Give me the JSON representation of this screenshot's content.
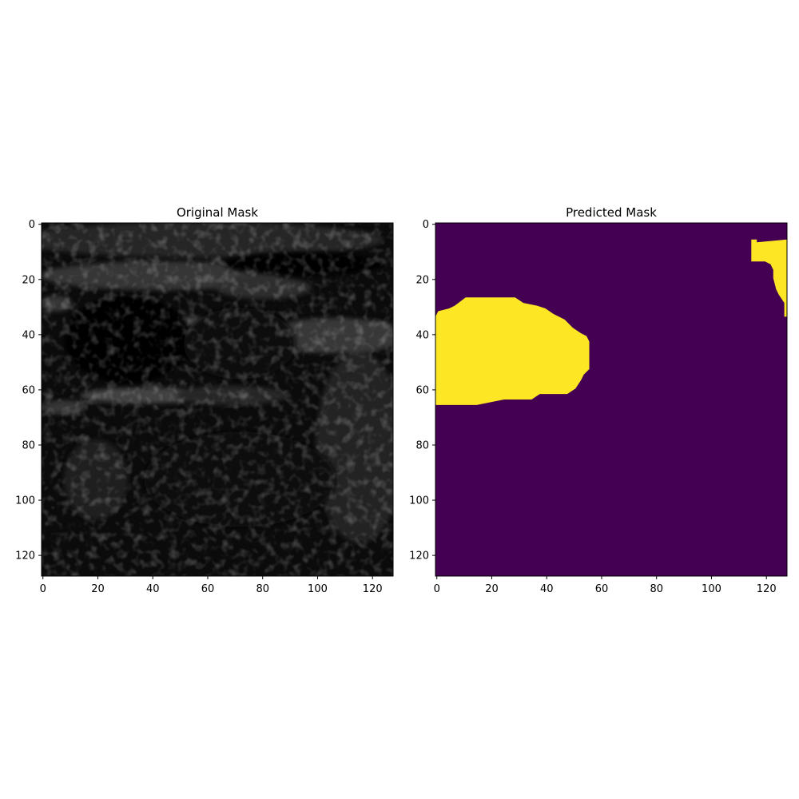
{
  "chart_data": [
    {
      "type": "heatmap",
      "title": "Original Mask",
      "xlabel": "",
      "ylabel": "",
      "colormap": "gray",
      "content": "grayscale ultrasound image",
      "xlim": [
        0,
        128
      ],
      "ylim": [
        128,
        0
      ],
      "xticks": [
        "0",
        "20",
        "40",
        "60",
        "80",
        "100",
        "120"
      ],
      "yticks": [
        "0",
        "20",
        "40",
        "60",
        "80",
        "100",
        "120"
      ]
    },
    {
      "type": "heatmap",
      "title": "Predicted Mask",
      "xlabel": "",
      "ylabel": "",
      "colormap": "viridis",
      "colors": {
        "background": "#440154",
        "mask": "#fde725"
      },
      "xlim": [
        0,
        128
      ],
      "ylim": [
        128,
        0
      ],
      "xticks": [
        "0",
        "20",
        "40",
        "60",
        "80",
        "100",
        "120"
      ],
      "yticks": [
        "0",
        "20",
        "40",
        "60",
        "80",
        "100",
        "120"
      ],
      "regions": [
        {
          "name": "left blob",
          "outline": [
            [
              0,
              34
            ],
            [
              1,
              32
            ],
            [
              5,
              31
            ],
            [
              7,
              30
            ],
            [
              11,
              27
            ],
            [
              20,
              27
            ],
            [
              29,
              27
            ],
            [
              32,
              29
            ],
            [
              37,
              30
            ],
            [
              40,
              31
            ],
            [
              43,
              33
            ],
            [
              47,
              35
            ],
            [
              50,
              38
            ],
            [
              53,
              40
            ],
            [
              55,
              41
            ],
            [
              56,
              43
            ],
            [
              56,
              47
            ],
            [
              56,
              53
            ],
            [
              54,
              55
            ],
            [
              53,
              57
            ],
            [
              51,
              60
            ],
            [
              48,
              62
            ],
            [
              38,
              62
            ],
            [
              35,
              64
            ],
            [
              25,
              64
            ],
            [
              15,
              66
            ],
            [
              5,
              66
            ],
            [
              0,
              66
            ]
          ]
        },
        {
          "name": "top-right blob",
          "outline": [
            [
              115,
              6
            ],
            [
              117,
              6
            ],
            [
              117,
              7
            ],
            [
              128,
              6
            ],
            [
              128,
              34
            ],
            [
              127,
              34
            ],
            [
              127,
              29
            ],
            [
              125,
              26
            ],
            [
              124,
              24
            ],
            [
              123,
              20
            ],
            [
              123,
              17
            ],
            [
              122,
              15
            ],
            [
              120,
              14
            ],
            [
              115,
              14
            ],
            [
              115,
              11
            ]
          ]
        }
      ]
    }
  ]
}
